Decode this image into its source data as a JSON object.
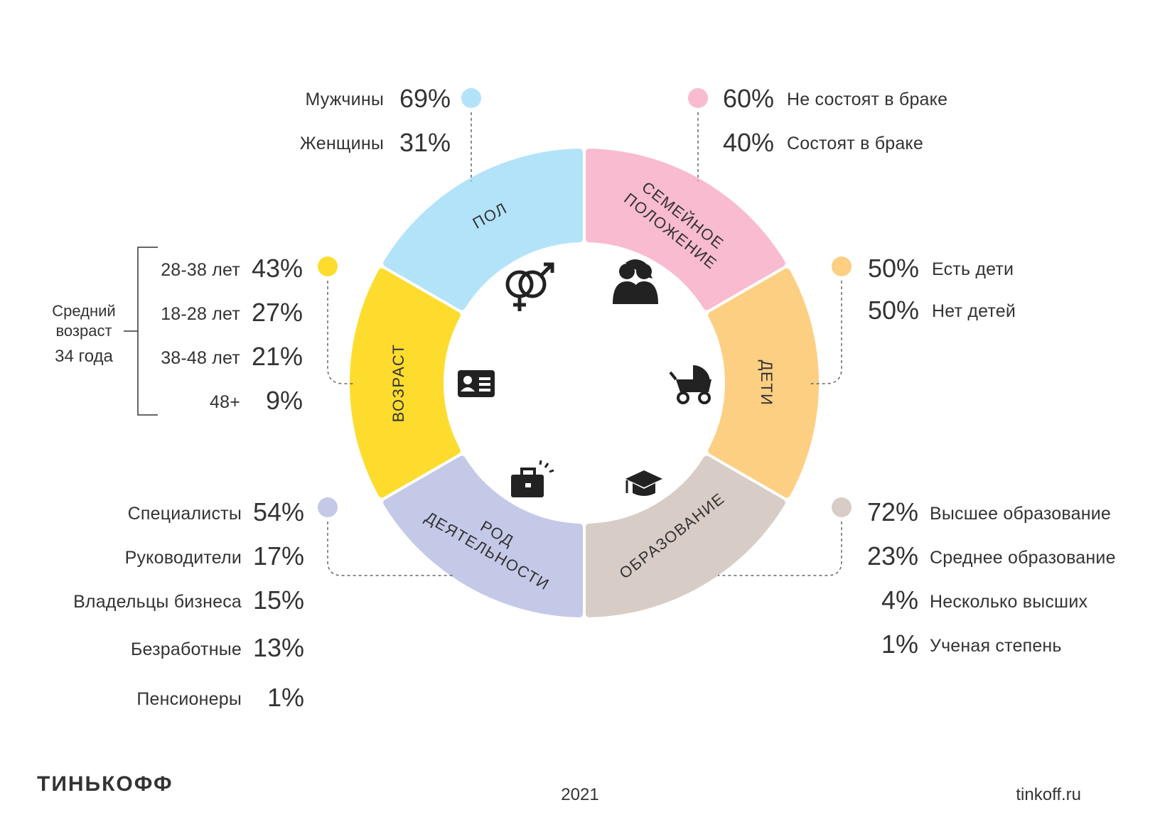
{
  "colors": {
    "gender": "#b3e3f9",
    "marital": "#f8bbd0",
    "children": "#fdcf83",
    "education": "#d8cdc6",
    "occupation": "#c5c9e8",
    "age": "#fddc2e",
    "text": "#333333"
  },
  "segments": {
    "gender": {
      "label": "ПОЛ",
      "icon": "gender-symbols-icon"
    },
    "marital": {
      "label_line1": "СЕМЕЙНОЕ",
      "label_line2": "ПОЛОЖЕНИЕ",
      "icon": "couple-icon"
    },
    "children": {
      "label": "ДЕТИ",
      "icon": "baby-stroller-icon"
    },
    "education": {
      "label": "ОБРАЗОВАНИЕ",
      "icon": "graduation-cap-icon"
    },
    "occupation": {
      "label_line1": "РОД",
      "label_line2": "ДЕЯТЕЛЬНОСТИ",
      "icon": "briefcase-icon"
    },
    "age": {
      "label": "ВОЗРАСТ",
      "icon": "id-card-icon"
    }
  },
  "gender": [
    {
      "label": "Мужчины",
      "value": "69%"
    },
    {
      "label": "Женщины",
      "value": "31%"
    }
  ],
  "marital": [
    {
      "value": "60%",
      "label": "Не состоят в браке"
    },
    {
      "value": "40%",
      "label": "Состоят в браке"
    }
  ],
  "children": [
    {
      "value": "50%",
      "label": "Есть дети"
    },
    {
      "value": "50%",
      "label": "Нет детей"
    }
  ],
  "age": [
    {
      "label": "28-38  лет",
      "value": "43%"
    },
    {
      "label": "18-28  лет",
      "value": "27%"
    },
    {
      "label": "38-48  лет",
      "value": "21%"
    },
    {
      "label": "48+",
      "value": "9%"
    }
  ],
  "age_average": {
    "line1": "Средний",
    "line2": "возраст",
    "line3": "34 года"
  },
  "occupation": [
    {
      "label": "Специалисты",
      "value": "54%"
    },
    {
      "label": "Руководители",
      "value": "17%"
    },
    {
      "label": "Владельцы бизнеса",
      "value": "15%"
    },
    {
      "label": "Безработные",
      "value": "13%"
    },
    {
      "label": "Пенсионеры",
      "value": "1%"
    }
  ],
  "education": [
    {
      "value": "72%",
      "label": "Высшее образование"
    },
    {
      "value": "23%",
      "label": "Среднее образование"
    },
    {
      "value": "4%",
      "label": "Несколько высших"
    },
    {
      "value": "1%",
      "label": "Ученая степень"
    }
  ],
  "footer": {
    "logo": "ТИНЬКОФФ",
    "year": "2021",
    "site": "tinkoff.ru"
  }
}
